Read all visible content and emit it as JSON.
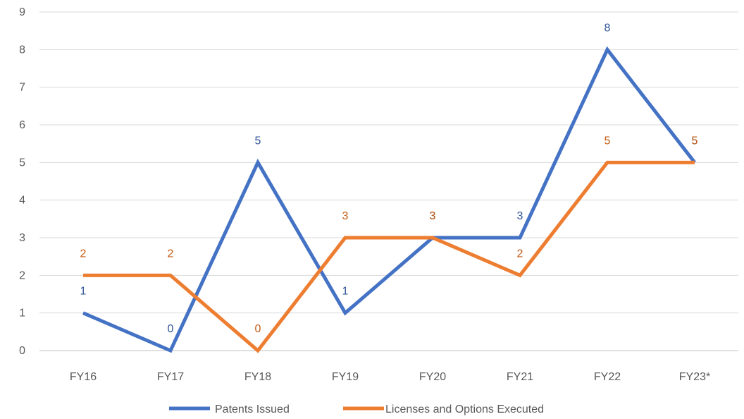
{
  "chart_data": {
    "type": "line",
    "categories": [
      "FY16",
      "FY17",
      "FY18",
      "FY19",
      "FY20",
      "FY21",
      "FY22",
      "FY23*"
    ],
    "series": [
      {
        "name": "Patents Issued",
        "values": [
          1,
          0,
          5,
          1,
          3,
          3,
          8,
          5
        ],
        "color": "#4472C4",
        "label_color": "#2F5597"
      },
      {
        "name": "Licenses and Options Executed",
        "values": [
          2,
          2,
          0,
          3,
          3,
          2,
          5,
          5
        ],
        "color": "#ED7D31",
        "label_color": "#C55A11"
      }
    ],
    "yticks": [
      "0",
      "1",
      "2",
      "3",
      "4",
      "5",
      "6",
      "7",
      "8",
      "9"
    ],
    "ylim": [
      0,
      9
    ],
    "grid": true,
    "legend_position": "bottom",
    "data_labels": true
  }
}
